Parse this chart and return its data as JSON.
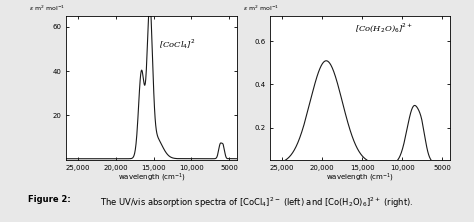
{
  "left_label": "[CoCl$_4$]$^2$",
  "right_label": "[Co(H$_2$O)$_6$]$^{2+}$",
  "left_ylabel": "$\\varepsilon$ m$^2$ mol$^{-1}$",
  "right_ylabel": "$\\varepsilon$ m$^2$ mol$^{-1}$",
  "xlabel": "wavelength (cm$^{-1}$)",
  "left_ylim": [
    0,
    65
  ],
  "right_ylim": [
    0.05,
    0.72
  ],
  "left_yticks": [
    20,
    40,
    60
  ],
  "right_yticks": [
    0.2,
    0.4,
    0.6
  ],
  "xticks": [
    25000,
    20000,
    15000,
    10000,
    5000
  ],
  "xtick_labels": [
    "25,000",
    "20,000",
    "15,000",
    "10,000",
    "5000"
  ],
  "xlim": [
    26500,
    4000
  ],
  "caption_bold": "Figure 2:",
  "caption_regular": " The UV/vis absorption spectra of [CoCl",
  "line_color": "#1a1a1a",
  "bg_color": "#ffffff",
  "fig_bg": "#e8e8e8"
}
